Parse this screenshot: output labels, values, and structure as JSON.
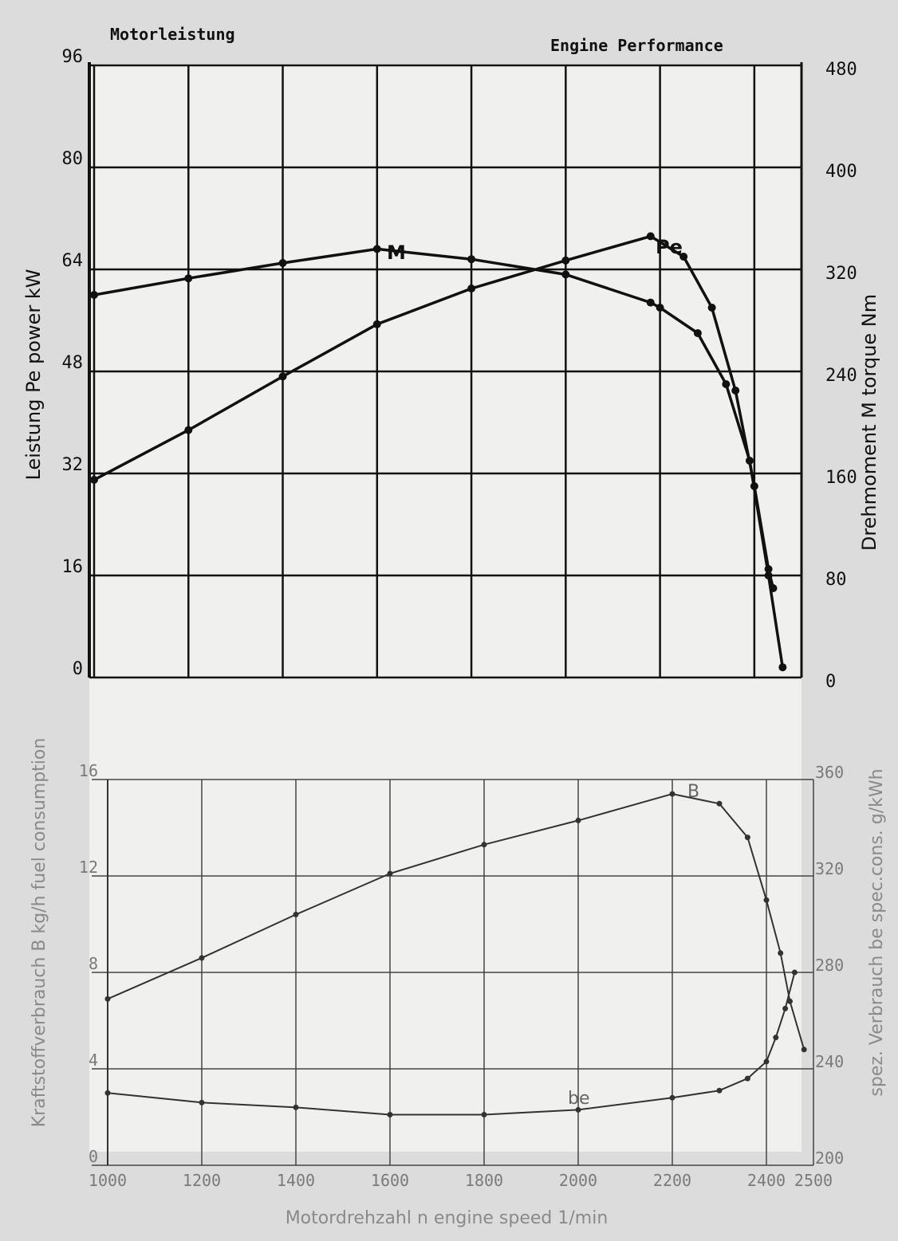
{
  "chart_data": [
    {
      "type": "line",
      "header_left": "Motorleistung",
      "header_right": "Engine Performance",
      "xlabel": "",
      "ylabel_left": "Leistung   Pe   power   kW",
      "ylabel_right": "Drehmoment   M   torque   Nm",
      "xlim": [
        1000,
        2500
      ],
      "ylim_left": [
        0,
        96
      ],
      "ylim_right": [
        0,
        480
      ],
      "yticks_left": [
        "0",
        "16",
        "32",
        "48",
        "64",
        "80",
        "96"
      ],
      "yticks_right": [
        "0",
        "80",
        "160",
        "240",
        "320",
        "400",
        "480"
      ],
      "grid": true,
      "series": [
        {
          "name": "M",
          "axis": "right",
          "points": [
            [
              1000,
              300
            ],
            [
              1200,
              313
            ],
            [
              1400,
              325
            ],
            [
              1600,
              336
            ],
            [
              1800,
              328
            ],
            [
              2000,
              316
            ],
            [
              2180,
              294
            ],
            [
              2200,
              290
            ],
            [
              2280,
              270
            ],
            [
              2340,
              230
            ],
            [
              2390,
              170
            ],
            [
              2430,
              80
            ],
            [
              2460,
              8
            ]
          ]
        },
        {
          "name": "Pe",
          "axis": "left",
          "points": [
            [
              1000,
              31
            ],
            [
              1200,
              38.8
            ],
            [
              1400,
              47.2
            ],
            [
              1600,
              55.4
            ],
            [
              1800,
              61
            ],
            [
              2000,
              65.4
            ],
            [
              2180,
              69.2
            ],
            [
              2250,
              66
            ],
            [
              2310,
              58
            ],
            [
              2360,
              45
            ],
            [
              2400,
              30
            ],
            [
              2430,
              17
            ],
            [
              2440,
              14
            ]
          ]
        }
      ]
    },
    {
      "type": "line",
      "xlabel": "Motordrehzahl   n   engine speed   1/min",
      "ylabel_left": "Kraftstoffverbrauch   B   kg/h   fuel consumption",
      "ylabel_right": "spez. Verbrauch   be   spec.cons.   g/kWh",
      "xlim": [
        1000,
        2500
      ],
      "ylim_left": [
        0,
        16
      ],
      "ylim_right": [
        200,
        360
      ],
      "xticks": [
        "1000",
        "1200",
        "1400",
        "1600",
        "1800",
        "2000",
        "2200",
        "2400",
        "2500"
      ],
      "yticks_left": [
        "0",
        "4",
        "8",
        "12",
        "16"
      ],
      "yticks_right": [
        "200",
        "240",
        "280",
        "320",
        "360"
      ],
      "grid": true,
      "series": [
        {
          "name": "B",
          "axis": "left",
          "points": [
            [
              1000,
              6.9
            ],
            [
              1200,
              8.6
            ],
            [
              1400,
              10.4
            ],
            [
              1600,
              12.1
            ],
            [
              1800,
              13.3
            ],
            [
              2000,
              14.3
            ],
            [
              2200,
              15.4
            ],
            [
              2300,
              15
            ],
            [
              2360,
              13.6
            ],
            [
              2400,
              11
            ],
            [
              2430,
              8.8
            ],
            [
              2450,
              6.8
            ],
            [
              2480,
              4.8
            ]
          ]
        },
        {
          "name": "be",
          "axis": "right",
          "points": [
            [
              1000,
              230
            ],
            [
              1200,
              226
            ],
            [
              1400,
              224
            ],
            [
              1600,
              221
            ],
            [
              1800,
              221
            ],
            [
              2000,
              223
            ],
            [
              2200,
              228
            ],
            [
              2300,
              231
            ],
            [
              2360,
              236
            ],
            [
              2400,
              243
            ],
            [
              2420,
              253
            ],
            [
              2440,
              265
            ],
            [
              2460,
              280
            ]
          ]
        }
      ]
    }
  ]
}
